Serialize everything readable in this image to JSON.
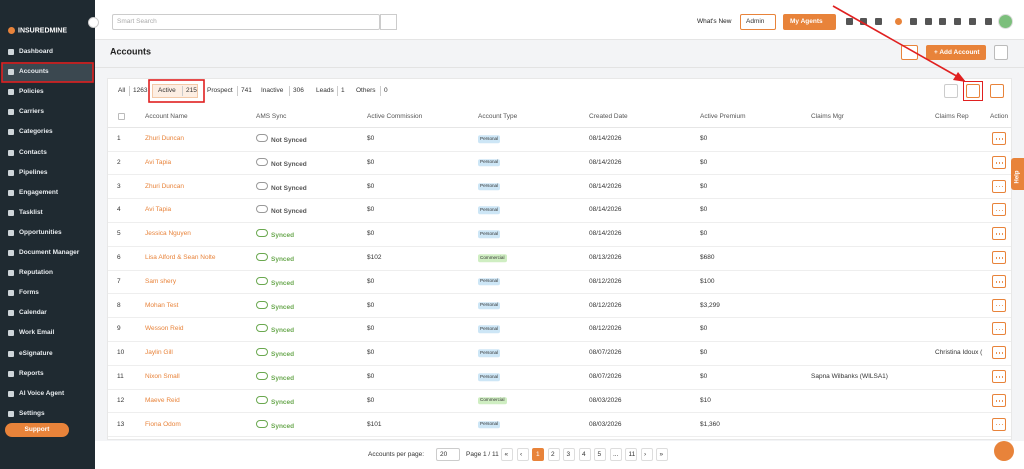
{
  "logo": "INSUREDMINE",
  "sidebar": [
    "Dashboard",
    "Accounts",
    "Policies",
    "Carriers",
    "Categories",
    "Contacts",
    "Pipelines",
    "Engagement",
    "Tasklist",
    "Opportunities",
    "Document Manager",
    "Reputation",
    "Forms",
    "Calendar",
    "Work Email",
    "eSignature",
    "Reports",
    "AI Voice Agent",
    "Settings"
  ],
  "support": "Support",
  "topbar": {
    "search": "Smart Search",
    "whats_new": "What's New",
    "role": "Admin",
    "agents": "My Agents"
  },
  "header": {
    "title": "Accounts",
    "add_button": "+ Add Account"
  },
  "tabs": [
    {
      "label": "All",
      "count": 1263
    },
    {
      "label": "Active",
      "count": 215
    },
    {
      "label": "Prospect",
      "count": 741
    },
    {
      "label": "Inactive",
      "count": 306
    },
    {
      "label": "Leads",
      "count": 1
    },
    {
      "label": "Others",
      "count": 0
    }
  ],
  "table": {
    "columns": [
      "Account Name",
      "AMS Sync",
      "Active Commission",
      "Account Type",
      "Created Date",
      "Active Premium",
      "Claims Mgr",
      "Claims Rep",
      "Action"
    ],
    "rows": [
      {
        "index": 1,
        "name": "Zhuri Duncan",
        "sync": "Not Synced",
        "commission": "$0",
        "type": "Personal",
        "created": "08/14/2026",
        "premium": "$0"
      },
      {
        "index": 2,
        "name": "Avi Tapia",
        "sync": "Not Synced",
        "commission": "$0",
        "type": "Personal",
        "created": "08/14/2026",
        "premium": "$0"
      },
      {
        "index": 3,
        "name": "Zhuri Duncan",
        "sync": "Not Synced",
        "commission": "$0",
        "type": "Personal",
        "created": "08/14/2026",
        "premium": "$0"
      },
      {
        "index": 4,
        "name": "Avi Tapia",
        "sync": "Not Synced",
        "commission": "$0",
        "type": "Personal",
        "created": "08/14/2026",
        "premium": "$0"
      },
      {
        "index": 5,
        "name": "Jessica Nguyen",
        "sync": "Synced",
        "commission": "$0",
        "type": "Personal",
        "created": "08/14/2026",
        "premium": "$0"
      },
      {
        "index": 6,
        "name": "Lisa Alford & Sean Nolte",
        "sync": "Synced",
        "commission": "$102",
        "type": "Commercial",
        "created": "08/13/2026",
        "premium": "$680"
      },
      {
        "index": 7,
        "name": "Sam shery",
        "sync": "Synced",
        "commission": "$0",
        "type": "Personal",
        "created": "08/12/2026",
        "premium": "$100"
      },
      {
        "index": 8,
        "name": "Mohan Test",
        "sync": "Synced",
        "commission": "$0",
        "type": "Personal",
        "created": "08/12/2026",
        "premium": "$3,299"
      },
      {
        "index": 9,
        "name": "Wesson Reid",
        "sync": "Synced",
        "commission": "$0",
        "type": "Personal",
        "created": "08/12/2026",
        "premium": "$0"
      },
      {
        "index": 10,
        "name": "Jaylin Gill",
        "sync": "Synced",
        "commission": "$0",
        "type": "Personal",
        "created": "08/07/2026",
        "premium": "$0",
        "claims_rep": "Christina Idoux ("
      },
      {
        "index": 11,
        "name": "Nixon Small",
        "sync": "Synced",
        "commission": "$0",
        "type": "Personal",
        "created": "08/07/2026",
        "premium": "$0",
        "claims_mgr": "Sapna Wilbanks (WILSA1)"
      },
      {
        "index": 12,
        "name": "Maeve Reid",
        "sync": "Synced",
        "commission": "$0",
        "type": "Commercial",
        "created": "08/03/2026",
        "premium": "$10"
      },
      {
        "index": 13,
        "name": "Fiona Odom",
        "sync": "Synced",
        "commission": "$101",
        "type": "Personal",
        "created": "08/03/2026",
        "premium": "$1,360"
      }
    ]
  },
  "pagination": {
    "per_page_label": "Accounts per page:",
    "per_page": 20,
    "page_info": "Page 1 / 11",
    "prev": [
      "«",
      "‹"
    ],
    "pages": [
      "1",
      "2",
      "3",
      "4",
      "5",
      "...",
      "11"
    ],
    "next": [
      "›",
      "»"
    ]
  },
  "help": "Help"
}
